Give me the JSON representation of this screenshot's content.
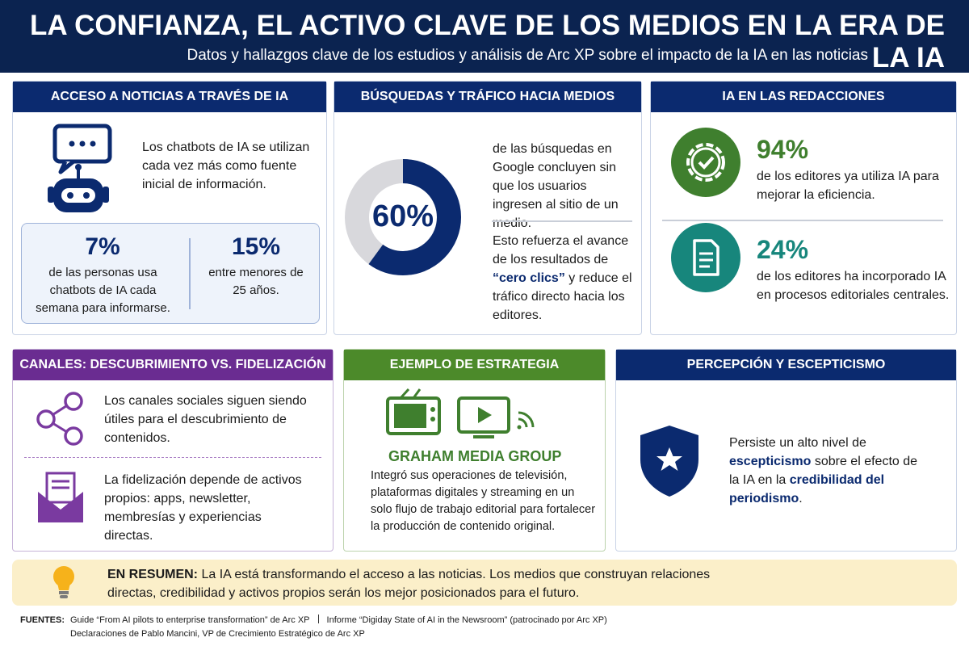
{
  "header": {
    "title": "LA CONFIANZA, EL ACTIVO CLAVE DE LOS MEDIOS EN LA ERA DE LA IA",
    "subtitle": "Datos y hallazgos clave de los estudios y análisis de Arc XP sobre el impacto de la IA en las noticias"
  },
  "access": {
    "title": "ACCESO A NOTICIAS A TRAVÉS DE IA",
    "text": "Los chatbots de IA se utilizan cada vez más como fuente inicial de información.",
    "stats": [
      {
        "value": "7%",
        "text": "de las personas usa chatbots de IA cada semana para informarse."
      },
      {
        "value": "15%",
        "text": "entre menores de 25 años."
      }
    ]
  },
  "search": {
    "title": "BÚSQUEDAS Y TRÁFICO HACIA MEDIOS",
    "donut": {
      "value": 60,
      "label": "60%"
    },
    "text": "de las búsquedas en Google concluyen sin que los usuarios ingresen al sitio de un medio.",
    "note": [
      "Esto refuerza el avance de los resultados de ",
      "“cero clics”",
      " y reduce el tráfico directo hacia los editores."
    ]
  },
  "newsroom": {
    "title": "IA EN LAS REDACCIONES",
    "stats": [
      {
        "value": "94%",
        "text": "de los editores ya utiliza IA para mejorar la eficiencia."
      },
      {
        "value": "24%",
        "text": "de los editores ha incorporado IA en procesos editoriales centrales."
      }
    ]
  },
  "channels": {
    "title": "CANALES: DESCUBRIMIENTO VS. FIDELIZACIÓN",
    "items": [
      "Los canales sociales siguen siendo útiles para el descubrimiento de contenidos.",
      "La fidelización depende de activos propios: apps, newsletter, membresías y experiencias directas."
    ]
  },
  "strategy": {
    "title": "EJEMPLO DE ESTRATEGIA",
    "company": "GRAHAM MEDIA GROUP",
    "text": "Integró sus operaciones de televisión, plataformas digitales y streaming en un solo flujo de trabajo editorial para fortalecer la producción de contenido original."
  },
  "perception": {
    "title": "PERCEPCIÓN Y ESCEPTICISMO",
    "text": [
      "Persiste un alto nivel de ",
      "escepticismo",
      " sobre el efecto de la IA en la ",
      "credibilidad del periodismo",
      "."
    ]
  },
  "summary": {
    "label": "EN RESUMEN:",
    "text": " La IA está transformando el acceso a las noticias. Los medios que construyan relaciones directas, credibilidad y activos propios serán los mejor posicionados para el futuro."
  },
  "sources": {
    "label": "FUENTES:",
    "items": [
      "Guide “From AI pilots to enterprise transformation” de Arc XP",
      "Informe “Digiday State of AI in the Newsroom” (patrocinado por Arc XP)",
      "Declaraciones de Pablo Mancini, VP de Crecimiento Estratégico de Arc XP"
    ]
  }
}
